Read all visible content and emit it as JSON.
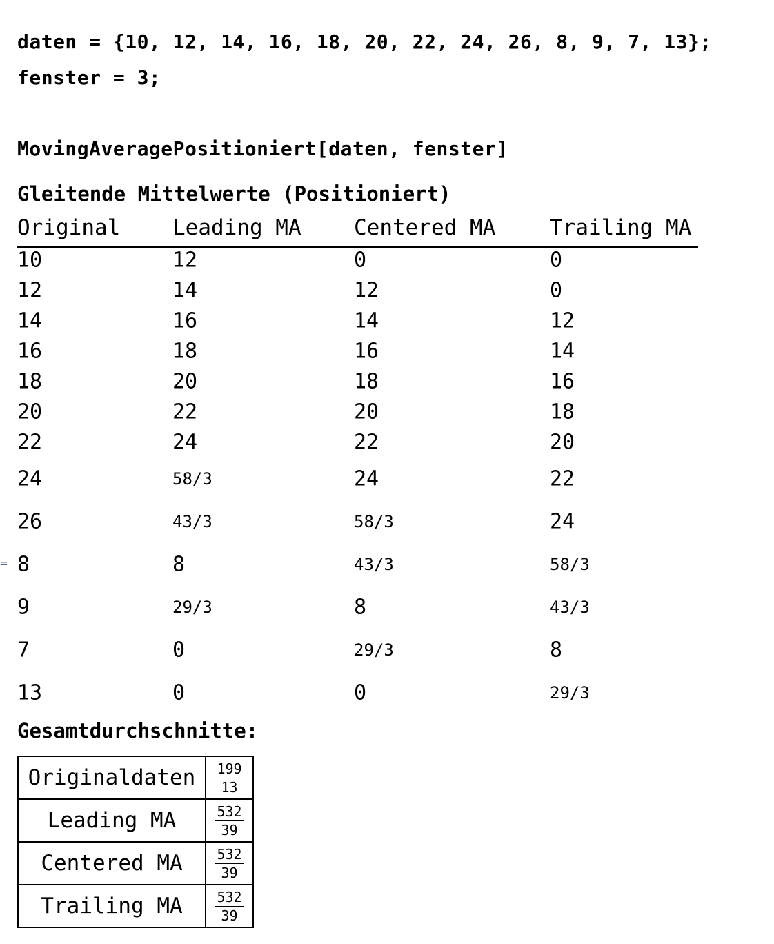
{
  "input": {
    "line1": "daten = {10, 12, 14, 16, 18, 20, 22, 24, 26, 8, 9, 7, 13};",
    "line2": "fenster = 3;",
    "line3": "MovingAveragePositioniert[daten, fenster]"
  },
  "output": {
    "marker": "=",
    "title": "Gleitende Mittelwerte (Positioniert)",
    "headers": [
      "Original",
      "Leading MA",
      "Centered MA",
      "Trailing MA"
    ],
    "rows": [
      [
        "10",
        "12",
        "0",
        "0"
      ],
      [
        "12",
        "14",
        "12",
        "0"
      ],
      [
        "14",
        "16",
        "14",
        "12"
      ],
      [
        "16",
        "18",
        "16",
        "14"
      ],
      [
        "18",
        "20",
        "18",
        "16"
      ],
      [
        "20",
        "22",
        "20",
        "18"
      ],
      [
        "22",
        "24",
        "22",
        "20"
      ],
      [
        "24",
        "58/3",
        "24",
        "22"
      ],
      [
        "26",
        "43/3",
        "58/3",
        "24"
      ],
      [
        "8",
        "8",
        "43/3",
        "58/3"
      ],
      [
        "9",
        "29/3",
        "8",
        "43/3"
      ],
      [
        "7",
        "0",
        "29/3",
        "8"
      ],
      [
        "13",
        "0",
        "0",
        "29/3"
      ]
    ],
    "summary_title": "Gesamtdurchschnitte:",
    "summary": [
      {
        "label": "Originaldaten",
        "num": "199",
        "den": "13"
      },
      {
        "label": "Leading MA",
        "num": "532",
        "den": "39"
      },
      {
        "label": "Centered MA",
        "num": "532",
        "den": "39"
      },
      {
        "label": "Trailing MA",
        "num": "532",
        "den": "39"
      }
    ]
  }
}
